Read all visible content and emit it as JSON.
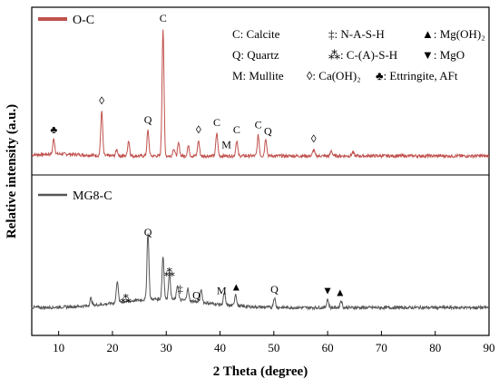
{
  "chart_data": {
    "type": "line",
    "xlabel": "2 Theta (degree)",
    "ylabel": "Relative intensity (a.u.)",
    "xlim": [
      5,
      90
    ],
    "xticks": [
      10,
      20,
      30,
      40,
      50,
      60,
      70,
      80,
      90
    ],
    "series": [
      {
        "name": "O-C",
        "color": "#c0504d",
        "panel": "top",
        "peaks": [
          {
            "x": 9.1,
            "h": 0.12
          },
          {
            "x": 18.0,
            "h": 0.35
          },
          {
            "x": 20.8,
            "h": 0.05
          },
          {
            "x": 23.0,
            "h": 0.12
          },
          {
            "x": 26.6,
            "h": 0.2
          },
          {
            "x": 29.4,
            "h": 1.0
          },
          {
            "x": 31.4,
            "h": 0.06
          },
          {
            "x": 32.3,
            "h": 0.1
          },
          {
            "x": 34.1,
            "h": 0.08
          },
          {
            "x": 36.0,
            "h": 0.12
          },
          {
            "x": 39.4,
            "h": 0.18
          },
          {
            "x": 43.1,
            "h": 0.12
          },
          {
            "x": 47.1,
            "h": 0.16
          },
          {
            "x": 48.5,
            "h": 0.14
          },
          {
            "x": 57.4,
            "h": 0.05
          },
          {
            "x": 60.7,
            "h": 0.04
          },
          {
            "x": 64.7,
            "h": 0.03
          }
        ]
      },
      {
        "name": "MG8-C",
        "color": "#555555",
        "panel": "bottom",
        "peaks": [
          {
            "x": 16.0,
            "h": 0.06
          },
          {
            "x": 20.9,
            "h": 0.18
          },
          {
            "x": 26.6,
            "h": 0.55
          },
          {
            "x": 29.4,
            "h": 0.35
          },
          {
            "x": 30.6,
            "h": 0.22
          },
          {
            "x": 32.1,
            "h": 0.12
          },
          {
            "x": 34.0,
            "h": 0.1
          },
          {
            "x": 36.5,
            "h": 0.1
          },
          {
            "x": 40.8,
            "h": 0.1
          },
          {
            "x": 42.9,
            "h": 0.1
          },
          {
            "x": 50.1,
            "h": 0.08
          },
          {
            "x": 60.0,
            "h": 0.07
          },
          {
            "x": 62.5,
            "h": 0.06
          }
        ]
      }
    ],
    "legend": {
      "placement": "top-right",
      "entries": [
        {
          "symbol": "C",
          "text": "C: Calcite"
        },
        {
          "symbol": "‡",
          "text": "‡: N-A-S-H"
        },
        {
          "symbol": "▲",
          "text": "▲: Mg(OH)₂"
        },
        {
          "symbol": "Q",
          "text": "Q: Quartz"
        },
        {
          "symbol": "⁂",
          "text": "⁂: C-(A)-S-H"
        },
        {
          "symbol": "▼",
          "text": "▼: MgO"
        },
        {
          "symbol": "M",
          "text": "M: Mullite"
        },
        {
          "symbol": "◊",
          "text": "◊: Ca(OH)₂"
        },
        {
          "symbol": "♣",
          "text": "♣: Ettringite, AFt"
        }
      ]
    },
    "annotations_top": [
      {
        "x": 9.1,
        "label": "♣"
      },
      {
        "x": 18.0,
        "label": "◊"
      },
      {
        "x": 26.6,
        "label": "Q"
      },
      {
        "x": 29.4,
        "label": "C"
      },
      {
        "x": 36.0,
        "label": "◊"
      },
      {
        "x": 39.4,
        "label": "C"
      },
      {
        "x": 41.2,
        "label": "M"
      },
      {
        "x": 43.1,
        "label": "C"
      },
      {
        "x": 47.1,
        "label": "C"
      },
      {
        "x": 48.9,
        "label": "Q"
      },
      {
        "x": 57.4,
        "label": "◊"
      }
    ],
    "annotations_bottom": [
      {
        "x": 22.5,
        "label": "⁂"
      },
      {
        "x": 26.6,
        "label": "Q"
      },
      {
        "x": 30.6,
        "label": "⁂"
      },
      {
        "x": 32.6,
        "label": "‡"
      },
      {
        "x": 35.6,
        "label": "Q"
      },
      {
        "x": 40.3,
        "label": "M"
      },
      {
        "x": 43.0,
        "label": "▲"
      },
      {
        "x": 50.1,
        "label": "Q"
      },
      {
        "x": 60.0,
        "label": "▼"
      },
      {
        "x": 62.3,
        "label": "▲"
      }
    ]
  }
}
